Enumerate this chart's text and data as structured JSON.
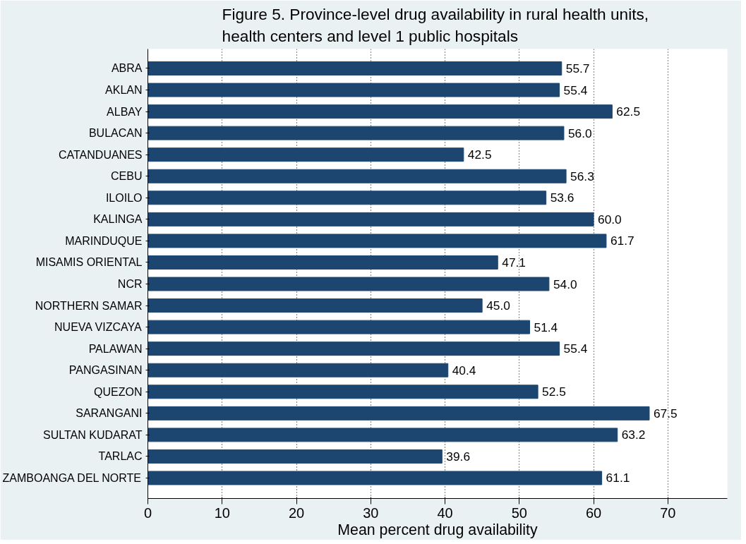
{
  "chart_data": {
    "type": "bar",
    "orientation": "horizontal",
    "title": "Figure 5.  Province-level drug availability in rural health units, health centers and level 1 public hospitals",
    "xlabel": "Mean percent drug availability",
    "categories": [
      "ABRA",
      "AKLAN",
      "ALBAY",
      "BULACAN",
      "CATANDUANES",
      "CEBU",
      "ILOILO",
      "KALINGA",
      "MARINDUQUE",
      "MISAMIS ORIENTAL",
      "NCR",
      "NORTHERN SAMAR",
      "NUEVA VIZCAYA",
      "PALAWAN",
      "PANGASINAN",
      "QUEZON",
      "SARANGANI",
      "SULTAN KUDARAT",
      "TARLAC",
      "ZAMBOANGA DEL NORTE"
    ],
    "values": [
      55.7,
      55.4,
      62.5,
      56.0,
      42.5,
      56.3,
      53.6,
      60.0,
      61.7,
      47.1,
      54.0,
      45.0,
      51.4,
      55.4,
      40.4,
      52.5,
      67.5,
      63.2,
      39.6,
      61.1
    ],
    "value_labels": [
      "55.7",
      "55.4",
      "62.5",
      "56.0",
      "42.5",
      "56.3",
      "53.6",
      "60.0",
      "61.7",
      "47.1",
      "54.0",
      "45.0",
      "51.4",
      "55.4",
      "40.4",
      "52.5",
      "67.5",
      "63.2",
      "39.6",
      "61.1"
    ],
    "color": "#1c466f",
    "xlim": [
      0,
      78
    ],
    "xticks": [
      0,
      10,
      20,
      30,
      40,
      50,
      60,
      70
    ],
    "grid": "x"
  }
}
